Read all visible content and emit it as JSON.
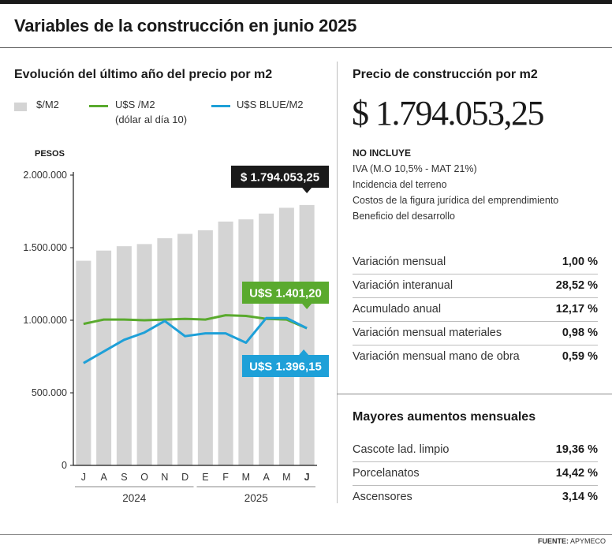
{
  "title": "Variables de la construcción en junio 2025",
  "left_subtitle": "Evolución del último año del precio por m2",
  "right_subtitle": "Precio de construcción por m2",
  "price_main": "$ 1.794.053,25",
  "no_incluye": {
    "title": "NO INCLUYE",
    "items": [
      "IVA (M.O 10,5% - MAT 21%)",
      "Incidencia del terreno",
      "Costos de la figura jurídica del emprendimiento",
      "Beneficio del desarrollo"
    ]
  },
  "variations": [
    {
      "label": "Variación mensual",
      "value": "1,00 %"
    },
    {
      "label": "Variación interanual",
      "value": "28,52 %"
    },
    {
      "label": "Acumulado anual",
      "value": "12,17 %"
    },
    {
      "label": "Variación mensual materiales",
      "value": "0,98 %"
    },
    {
      "label": "Variación mensual mano de obra",
      "value": "0,59 %"
    }
  ],
  "mayores": {
    "title": "Mayores aumentos mensuales",
    "items": [
      {
        "label": "Cascote lad. limpio",
        "value": "19,36 %"
      },
      {
        "label": "Porcelanatos",
        "value": "14,42 %"
      },
      {
        "label": "Ascensores",
        "value": "3,14 %"
      }
    ]
  },
  "legend": {
    "bar": "$/M2",
    "green": "U$S /M2",
    "green_sub": "(dólar al día 10)",
    "blue": "U$S BLUE/M2"
  },
  "source": {
    "label": "FUENTE:",
    "value": "APYMECO"
  },
  "colors": {
    "bar": "#d4d4d4",
    "green": "#5aaa2e",
    "blue": "#1ea0d8",
    "dark": "#1a1a1a"
  },
  "chart_data": {
    "type": "bar",
    "ylabel": "PESOS",
    "ylim": [
      0,
      2000000
    ],
    "yticks": [
      "0",
      "500.000",
      "1.000.000",
      "1.500.000",
      "2.000.000"
    ],
    "categories": [
      "J",
      "A",
      "S",
      "O",
      "N",
      "D",
      "E",
      "F",
      "M",
      "A",
      "M",
      "J"
    ],
    "year_groups": [
      {
        "label": "2024",
        "from": 0,
        "to": 5
      },
      {
        "label": "2025",
        "from": 6,
        "to": 11
      }
    ],
    "series": [
      {
        "name": "$/M2",
        "kind": "bar",
        "values": [
          1410000,
          1480000,
          1510000,
          1525000,
          1565000,
          1595000,
          1620000,
          1680000,
          1695000,
          1735000,
          1775000,
          1794053.25
        ]
      },
      {
        "name": "U$S /M2",
        "kind": "line",
        "values": [
          975000,
          1005000,
          1005000,
          1000000,
          1005000,
          1010000,
          1005000,
          1035000,
          1030000,
          1010000,
          1005000,
          945000
        ]
      },
      {
        "name": "U$S BLUE/M2",
        "kind": "line",
        "values": [
          705000,
          785000,
          865000,
          915000,
          995000,
          890000,
          910000,
          910000,
          845000,
          1015000,
          1015000,
          945000
        ]
      }
    ],
    "annotations": [
      {
        "text": "$ 1.794.053,25",
        "series": 0,
        "index": 11
      },
      {
        "text": "U$S 1.401,20",
        "series": 1,
        "index": 11
      },
      {
        "text": "U$S 1.396,15",
        "series": 2,
        "index": 11
      }
    ]
  }
}
